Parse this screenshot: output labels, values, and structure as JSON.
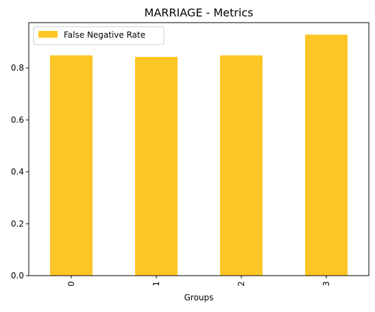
{
  "chart_data": {
    "type": "bar",
    "title": "MARRIAGE - Metrics",
    "xlabel": "Groups",
    "ylabel": "",
    "categories": [
      "0",
      "1",
      "2",
      "3"
    ],
    "series": [
      {
        "name": "False Negative Rate",
        "values": [
          0.849,
          0.843,
          0.849,
          0.929
        ],
        "color": "#fdc627"
      }
    ],
    "ylim": [
      0,
      0.975
    ],
    "yticks": [
      0.0,
      0.2,
      0.4,
      0.6,
      0.8
    ],
    "ytick_labels": [
      "0.0",
      "0.2",
      "0.4",
      "0.6",
      "0.8"
    ],
    "grid": false,
    "legend_position": "top-left"
  }
}
